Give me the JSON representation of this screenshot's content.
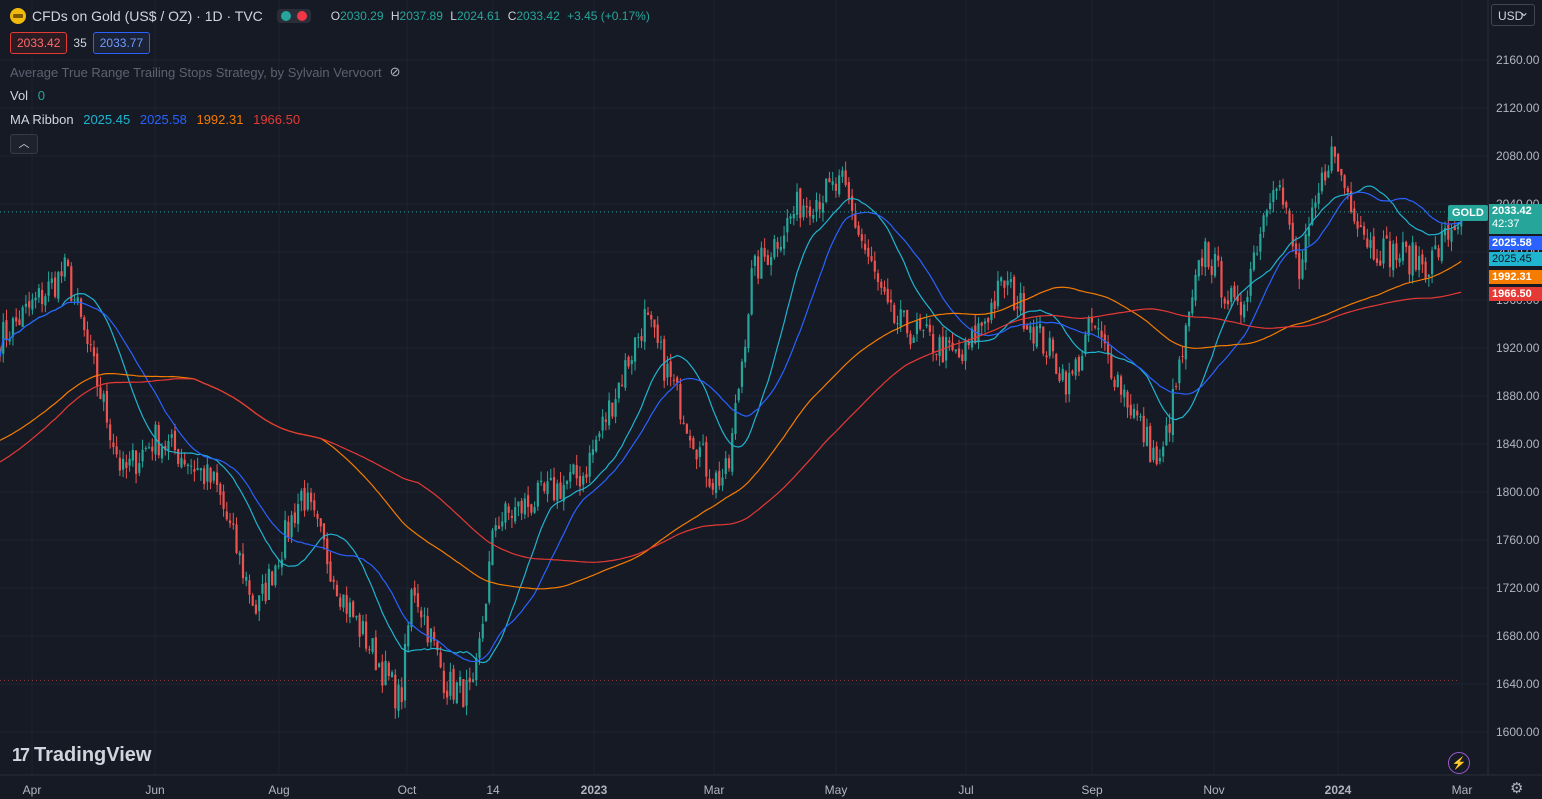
{
  "header": {
    "title": "CFDs on Gold (US$ / OZ) · 1D · TVC",
    "ohlc": [
      {
        "label": "O",
        "value": "2030.29"
      },
      {
        "label": "H",
        "value": "2037.89"
      },
      {
        "label": "L",
        "value": "2024.61"
      },
      {
        "label": "C",
        "value": "2033.42"
      }
    ],
    "change": "+3.45 (+0.17%)",
    "sell_price": "2033.42",
    "spread": "35",
    "buy_price": "2033.77"
  },
  "indicators": {
    "strategy": "Average True Range Trailing Stops Strategy, by Sylvain Vervoort",
    "vol_label": "Vol",
    "vol_value": "0",
    "ma_label": "MA Ribbon",
    "ma_values": [
      "2025.45",
      "2025.58",
      "1992.31",
      "1966.50"
    ]
  },
  "currency_button": "USD",
  "y_axis": [
    "2160.00",
    "2120.00",
    "2080.00",
    "2040.00",
    "2000.00",
    "1960.00",
    "1920.00",
    "1880.00",
    "1840.00",
    "1800.00",
    "1760.00",
    "1720.00",
    "1680.00",
    "1640.00",
    "1600.00"
  ],
  "price_tags": {
    "last": "2033.42",
    "countdown": "42:37",
    "ma2": "2025.58",
    "ma1": "2025.45",
    "ma3": "1992.31",
    "ma4": "1966.50",
    "symbol": "GOLD"
  },
  "x_axis": [
    "Apr",
    "Jun",
    "Aug",
    "Oct",
    "14",
    "2023",
    "Mar",
    "May",
    "Jul",
    "Sep",
    "Nov",
    "2024",
    "Mar"
  ],
  "brand": "TradingView",
  "colors": {
    "up": "#26a69a",
    "down": "#ef5350",
    "ma1": "#1fb4d0",
    "ma2": "#2962ff",
    "ma3": "#f57c00",
    "ma4": "#e53935"
  },
  "chart_data": {
    "type": "candlestick",
    "symbol": "GOLD",
    "interval": "1D",
    "ylim": [
      1590,
      2180
    ],
    "y_ticks": [
      1600,
      1640,
      1680,
      1720,
      1760,
      1800,
      1840,
      1880,
      1920,
      1960,
      2000,
      2040,
      2080,
      2120,
      2160
    ],
    "x_ticks": [
      "Apr",
      "Jun",
      "Aug",
      "Oct",
      "14",
      "2023",
      "Mar",
      "May",
      "Jul",
      "Sep",
      "Nov",
      "2024",
      "Mar"
    ],
    "close_path": [
      [
        "2022-03-15",
        1925
      ],
      [
        "2022-04-18",
        1985
      ],
      [
        "2022-05-16",
        1815
      ],
      [
        "2022-06-01",
        1845
      ],
      [
        "2022-06-15",
        1830
      ],
      [
        "2022-07-01",
        1805
      ],
      [
        "2022-07-21",
        1700
      ],
      [
        "2022-08-12",
        1800
      ],
      [
        "2022-09-01",
        1710
      ],
      [
        "2022-09-28",
        1625
      ],
      [
        "2022-10-04",
        1725
      ],
      [
        "2022-10-21",
        1640
      ],
      [
        "2022-11-04",
        1630
      ],
      [
        "2022-11-15",
        1775
      ],
      [
        "2022-12-01",
        1790
      ],
      [
        "2022-12-27",
        1815
      ],
      [
        "2023-01-26",
        1945
      ],
      [
        "2023-02-28",
        1810
      ],
      [
        "2023-03-08",
        1815
      ],
      [
        "2023-03-20",
        1980
      ],
      [
        "2023-04-13",
        2040
      ],
      [
        "2023-05-04",
        2055
      ],
      [
        "2023-05-26",
        1945
      ],
      [
        "2023-06-29",
        1910
      ],
      [
        "2023-07-20",
        1975
      ],
      [
        "2023-08-21",
        1890
      ],
      [
        "2023-09-01",
        1940
      ],
      [
        "2023-10-05",
        1820
      ],
      [
        "2023-10-27",
        2005
      ],
      [
        "2023-11-13",
        1945
      ],
      [
        "2023-12-01",
        2070
      ],
      [
        "2023-12-13",
        1980
      ],
      [
        "2023-12-28",
        2085
      ],
      [
        "2024-01-17",
        2005
      ],
      [
        "2024-02-14",
        1990
      ],
      [
        "2024-03-01",
        2033.42
      ]
    ],
    "last_close": 2033.42,
    "series": [
      {
        "name": "MA Ribbon 1",
        "last": 2025.45
      },
      {
        "name": "MA Ribbon 2",
        "last": 2025.58
      },
      {
        "name": "MA Ribbon 3",
        "last": 1992.31
      },
      {
        "name": "MA Ribbon 4",
        "last": 1966.5
      }
    ],
    "grid": true
  }
}
